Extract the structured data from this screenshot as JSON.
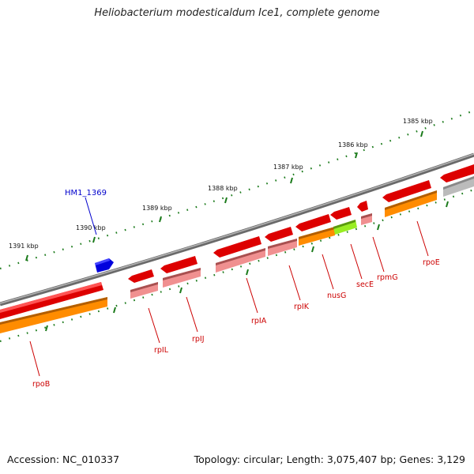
{
  "title": "Heliobacterium modesticaldum Ice1, complete genome",
  "footer": {
    "accession": "Accession: NC_010337",
    "summary": "Topology: circular; Length: 3,075,407 bp; Genes: 3,129"
  },
  "colors": {
    "gene_red": "#ee0000",
    "gene_orange": "#ff8c00",
    "gene_pink": "#f09090",
    "gene_green": "#99ee22",
    "gene_gray": "#bbbbbb",
    "gene_blue": "#0000dd",
    "ruler": "#1a7a1a",
    "backbone": "#808080",
    "label_red": "#cc0000",
    "label_blue": "#0000cc"
  },
  "scale_labels": [
    "1385 kbp",
    "1386 kbp",
    "1387 kbp",
    "1388 kbp",
    "1389 kbp",
    "1390 kbp",
    "1391 kbp"
  ],
  "gene_labels": [
    "HM1_1369",
    "rpoB",
    "rpIL",
    "rpIJ",
    "rpIA",
    "rpIK",
    "nusG",
    "secE",
    "rpmG",
    "rpoE"
  ]
}
